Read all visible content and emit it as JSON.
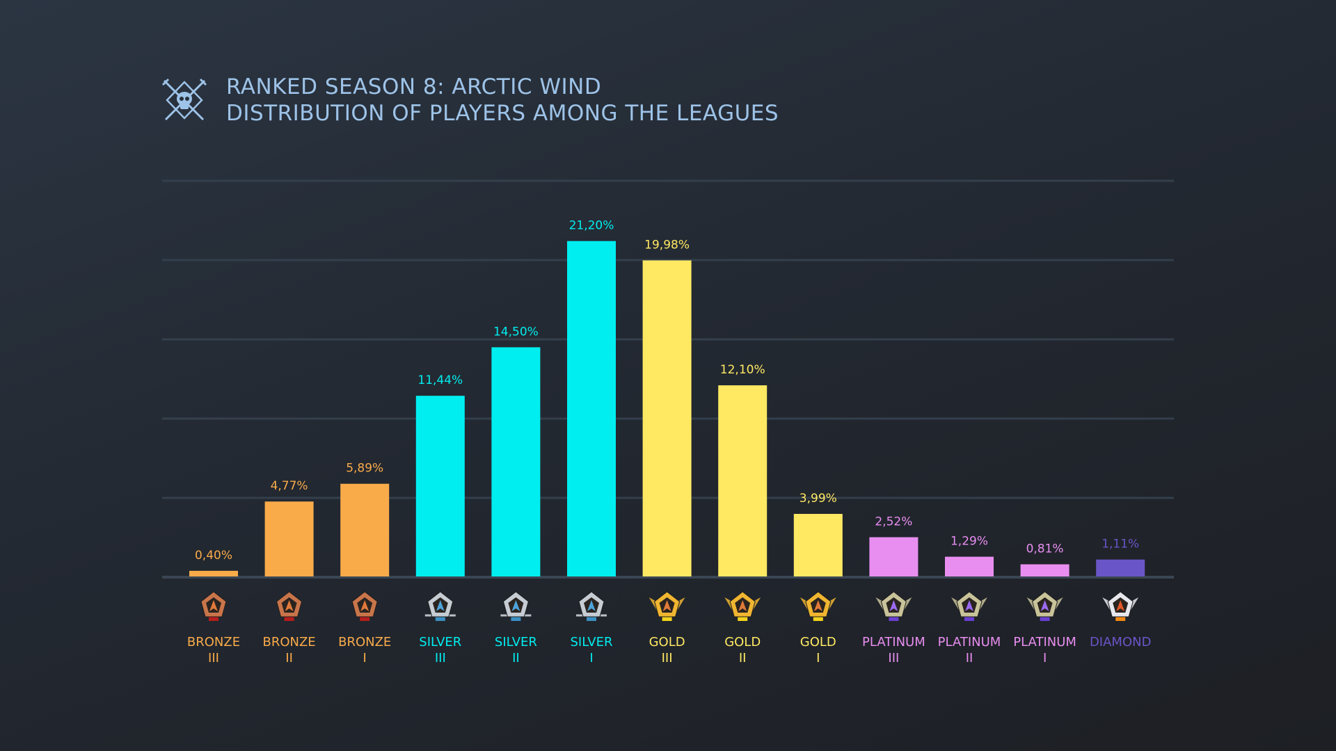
{
  "title": {
    "line1": "RANKED SEASON 8: ARCTIC WIND",
    "line2": "DISTRIBUTION OF PLAYERS AMONG THE LEAGUES",
    "icon": "skull-crossed-swords-icon",
    "color": "#9ec3e8"
  },
  "chart_data": {
    "type": "bar",
    "title": "RANKED SEASON 8: ARCTIC WIND — DISTRIBUTION OF PLAYERS AMONG THE LEAGUES",
    "ylim": [
      0,
      25
    ],
    "grid": true,
    "gridlines": [
      0,
      5,
      10,
      15,
      20,
      25
    ],
    "categories": [
      {
        "name": "BRONZE",
        "tier": "III",
        "value": 0.4,
        "label": "0,40%",
        "color": "#f9ab4a",
        "league": "bronze"
      },
      {
        "name": "BRONZE",
        "tier": "II",
        "value": 4.77,
        "label": "4,77%",
        "color": "#f9ab4a",
        "league": "bronze"
      },
      {
        "name": "BRONZE",
        "tier": "I",
        "value": 5.89,
        "label": "5,89%",
        "color": "#f9ab4a",
        "league": "bronze"
      },
      {
        "name": "SILVER",
        "tier": "III",
        "value": 11.44,
        "label": "11,44%",
        "color": "#00eef0",
        "league": "silver"
      },
      {
        "name": "SILVER",
        "tier": "II",
        "value": 14.5,
        "label": "14,50%",
        "color": "#00eef0",
        "league": "silver"
      },
      {
        "name": "SILVER",
        "tier": "I",
        "value": 21.2,
        "label": "21,20%",
        "color": "#00eef0",
        "league": "silver"
      },
      {
        "name": "GOLD",
        "tier": "III",
        "value": 19.98,
        "label": "19,98%",
        "color": "#ffe963",
        "league": "gold"
      },
      {
        "name": "GOLD",
        "tier": "II",
        "value": 12.1,
        "label": "12,10%",
        "color": "#ffe963",
        "league": "gold"
      },
      {
        "name": "GOLD",
        "tier": "I",
        "value": 3.99,
        "label": "3,99%",
        "color": "#ffe963",
        "league": "gold"
      },
      {
        "name": "PLATINUM",
        "tier": "III",
        "value": 2.52,
        "label": "2,52%",
        "color": "#e88ef0",
        "league": "platinum"
      },
      {
        "name": "PLATINUM",
        "tier": "II",
        "value": 1.29,
        "label": "1,29%",
        "color": "#e88ef0",
        "league": "platinum"
      },
      {
        "name": "PLATINUM",
        "tier": "I",
        "value": 0.81,
        "label": "0,81%",
        "color": "#e88ef0",
        "league": "platinum"
      },
      {
        "name": "DIAMOND",
        "tier": "",
        "value": 1.11,
        "label": "1,11%",
        "color": "#6a55c8",
        "league": "diamond"
      }
    ]
  },
  "badges": {
    "bronze": {
      "frame": "#c9754a",
      "ribbon": "#b51d1d",
      "icon": "bronze-rank-badge-icon"
    },
    "silver": {
      "frame": "#c6ccd4",
      "ribbon": "#3a8fc4",
      "icon": "silver-rank-badge-icon"
    },
    "gold": {
      "frame": "#f0b531",
      "ribbon": "#f2d21c",
      "icon": "gold-rank-badge-icon"
    },
    "platinum": {
      "frame": "#c9c39a",
      "ribbon": "#6a3fd0",
      "icon": "platinum-rank-badge-icon"
    },
    "diamond": {
      "frame": "#e6e8ee",
      "ribbon": "#f08a14",
      "icon": "diamond-rank-badge-icon"
    }
  }
}
